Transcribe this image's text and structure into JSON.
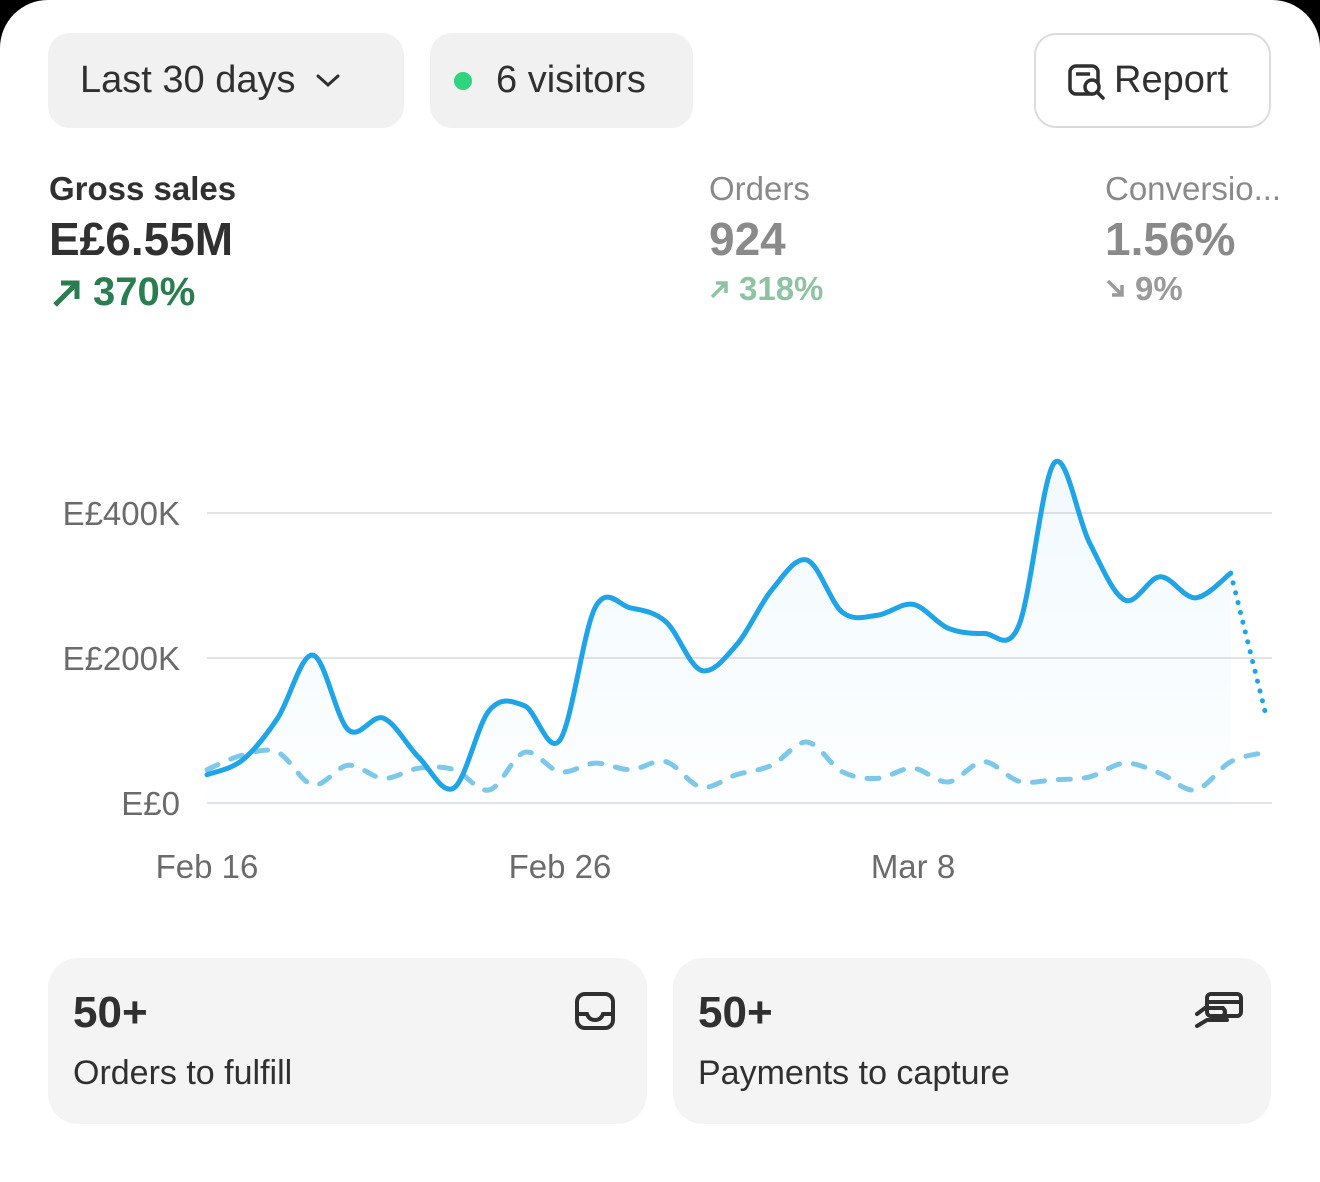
{
  "filters": {
    "range": "Last 30 days",
    "visitors": "6 visitors",
    "report": "Report"
  },
  "metrics": [
    {
      "label": "Gross sales",
      "value": "E£6.55M",
      "change": "370%"
    },
    {
      "label": "Orders",
      "value": "924",
      "change": "318%"
    },
    {
      "label": "Conversio...",
      "value": "1.56%",
      "change": "9%"
    }
  ],
  "chart_data": {
    "type": "line",
    "categories": [
      "Feb 16",
      null,
      null,
      null,
      null,
      null,
      null,
      null,
      null,
      null,
      "Feb 26",
      null,
      null,
      null,
      null,
      null,
      null,
      null,
      null,
      null,
      "Mar 8",
      null,
      null,
      null,
      null,
      null,
      null,
      null,
      null,
      null,
      null
    ],
    "series": [
      {
        "color": "#1fa4e8",
        "values": [
          39000,
          59000,
          117000,
          204000,
          101000,
          117000,
          63000,
          21000,
          128000,
          134000,
          87000,
          270000,
          269000,
          250000,
          183000,
          218000,
          294000,
          335000,
          263000,
          259000,
          274000,
          241000,
          234000,
          245000,
          469000,
          359000,
          280000,
          312000,
          283000,
          317000,
          121000
        ]
      },
      {
        "color": "#7ec8ea",
        "values": [
          46000,
          66000,
          70000,
          25000,
          52000,
          34000,
          48000,
          46000,
          18000,
          70000,
          43000,
          55000,
          46000,
          57000,
          22000,
          39000,
          52000,
          84000,
          43000,
          34000,
          48000,
          29000,
          57000,
          30000,
          32000,
          36000,
          55000,
          41000,
          18000,
          57000,
          70000
        ]
      }
    ],
    "ylim": [
      0,
      480000
    ],
    "yticks": [
      {
        "value": 0,
        "label": "E£0"
      },
      {
        "value": 200000,
        "label": "E£200K"
      },
      {
        "value": 400000,
        "label": "E£400K"
      }
    ],
    "grid": true
  },
  "cards": [
    {
      "value": "50+",
      "label": "Orders to fulfill"
    },
    {
      "value": "50+",
      "label": "Payments to capture"
    }
  ]
}
